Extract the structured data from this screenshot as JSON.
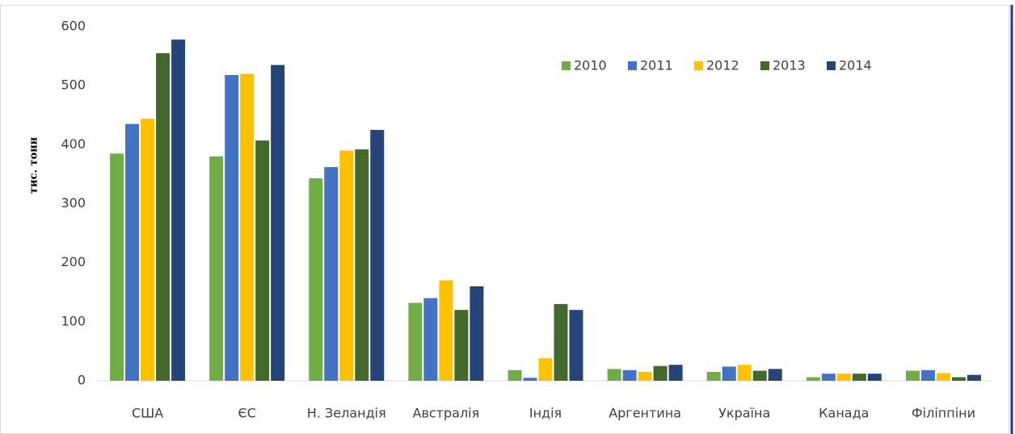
{
  "chart_data": {
    "type": "bar",
    "y_label": "тис. тонн",
    "categories": [
      "США",
      "ЄС",
      "Н. Зеландія",
      "Австралія",
      "Індія",
      "Аргентина",
      "Україна",
      "Канада",
      "Філіппіни"
    ],
    "series": [
      {
        "name": "2010",
        "color": "#70ad47",
        "values": [
          385,
          380,
          343,
          132,
          18,
          20,
          15,
          6,
          17
        ]
      },
      {
        "name": "2011",
        "color": "#4472c4",
        "values": [
          435,
          518,
          362,
          140,
          5,
          18,
          24,
          12,
          18
        ]
      },
      {
        "name": "2012",
        "color": "#ffc000",
        "values": [
          444,
          520,
          390,
          170,
          38,
          15,
          27,
          12,
          13
        ]
      },
      {
        "name": "2013",
        "color": "#43682b",
        "values": [
          555,
          407,
          392,
          120,
          130,
          25,
          17,
          12,
          6
        ]
      },
      {
        "name": "2014",
        "color": "#264478",
        "values": [
          578,
          535,
          425,
          160,
          120,
          27,
          20,
          12,
          10
        ]
      }
    ],
    "ylim": [
      0,
      600
    ],
    "yticks": [
      0,
      100,
      200,
      300,
      400,
      500,
      600
    ],
    "grid": false,
    "legend": "top-right"
  }
}
